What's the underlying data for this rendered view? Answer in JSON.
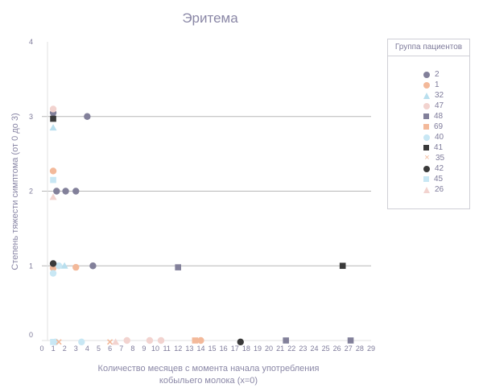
{
  "chart_data": {
    "type": "scatter",
    "title": "Эритема",
    "xlabel": "Количество месяцев с момента начала употребления кобыльего молока (x=0)",
    "xlabel_lines": [
      "Количество месяцев с момента начала употребления",
      "кобыльего молока (x=0)"
    ],
    "ylabel": "Степень тяжести симптома (от 0 до 3)",
    "xlim": [
      0,
      29
    ],
    "ylim": [
      0,
      4
    ],
    "x_ticks": [
      0,
      1,
      2,
      3,
      4,
      5,
      6,
      7,
      8,
      9,
      10,
      11,
      12,
      13,
      14,
      15,
      16,
      17,
      18,
      19,
      20,
      21,
      22,
      23,
      24,
      25,
      26,
      27,
      28,
      29
    ],
    "y_ticks": [
      0,
      1,
      2,
      3,
      4
    ],
    "gridlines_y": [
      1,
      2,
      3
    ],
    "legend_title": "Группа пациентов",
    "legend_position": "right",
    "series": [
      {
        "name": "2",
        "marker": "circle",
        "color": "#82809a",
        "points": [
          [
            0.5,
            3.05
          ],
          [
            3.5,
            3.0
          ],
          [
            0.8,
            2.0
          ],
          [
            1.6,
            2.0
          ],
          [
            2.5,
            2.0
          ],
          [
            4.0,
            1.0
          ]
        ]
      },
      {
        "name": "1",
        "marker": "circle",
        "color": "#f3b99a",
        "points": [
          [
            0.5,
            2.27
          ],
          [
            0.5,
            0.97
          ],
          [
            2.5,
            0.98
          ],
          [
            13.5,
            0.0
          ]
        ]
      },
      {
        "name": "32",
        "marker": "triangle",
        "color": "#b9dfee",
        "points": [
          [
            0.5,
            2.85
          ],
          [
            1.5,
            1.0
          ]
        ]
      },
      {
        "name": "47",
        "marker": "circle",
        "color": "#f2d3cf",
        "points": [
          [
            0.5,
            3.1
          ],
          [
            7.0,
            0.0
          ],
          [
            9.0,
            0.0
          ],
          [
            10.0,
            0.0
          ]
        ]
      },
      {
        "name": "48",
        "marker": "square",
        "color": "#82809a",
        "points": [
          [
            11.5,
            0.98
          ],
          [
            21.0,
            0.0
          ],
          [
            26.7,
            0.0
          ]
        ]
      },
      {
        "name": "69",
        "marker": "square",
        "color": "#f3b99a",
        "points": [
          [
            13.0,
            0.0
          ]
        ]
      },
      {
        "name": "40",
        "marker": "circle",
        "color": "#c8e7f4",
        "points": [
          [
            0.5,
            0.9
          ],
          [
            1.0,
            1.0
          ],
          [
            0.7,
            -0.02
          ],
          [
            3.0,
            -0.02
          ]
        ]
      },
      {
        "name": "41",
        "marker": "square",
        "color": "#3a3a3a",
        "points": [
          [
            0.5,
            2.97
          ],
          [
            26.0,
            1.0
          ]
        ]
      },
      {
        "name": "35",
        "marker": "cross",
        "color": "#f3b99a",
        "points": [
          [
            1.0,
            -0.02
          ],
          [
            5.5,
            -0.02
          ]
        ]
      },
      {
        "name": "42",
        "marker": "circle",
        "color": "#3a3a3a",
        "points": [
          [
            0.5,
            1.03
          ],
          [
            17.0,
            -0.02
          ]
        ]
      },
      {
        "name": "45",
        "marker": "square",
        "color": "#c8e7f4",
        "points": [
          [
            0.5,
            2.15
          ],
          [
            0.5,
            -0.02
          ]
        ]
      },
      {
        "name": "26",
        "marker": "triangle",
        "color": "#f2d3cf",
        "points": [
          [
            0.5,
            1.92
          ],
          [
            6.0,
            -0.02
          ]
        ]
      }
    ]
  },
  "colors": {
    "title": "#8a87a6",
    "axis_text": "#7d7a9a",
    "grid": "#b7b7b7",
    "axis": "#e2e2e2"
  }
}
